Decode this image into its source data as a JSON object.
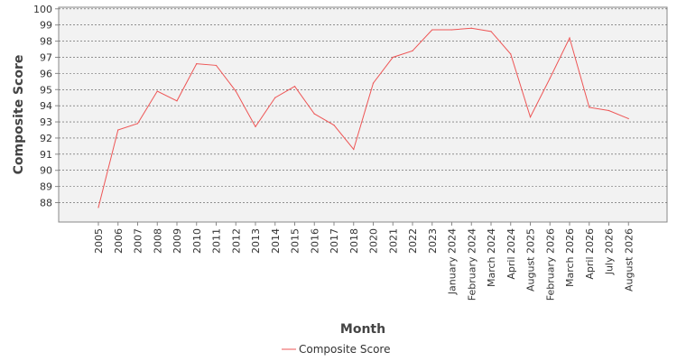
{
  "chart_data": {
    "type": "line",
    "title": "",
    "xlabel": "Month",
    "ylabel": "Composite Score",
    "ylim": [
      86.8,
      100.1
    ],
    "yticks": [
      88,
      89,
      90,
      91,
      92,
      93,
      94,
      95,
      96,
      97,
      98,
      99,
      100
    ],
    "grid": true,
    "legend_position": "bottom",
    "categories": [
      "2005",
      "2006",
      "2007",
      "2008",
      "2009",
      "2010",
      "2011",
      "2012",
      "2013",
      "2014",
      "2015",
      "2016",
      "2017",
      "2018",
      "2020",
      "2021",
      "2022",
      "2023",
      "January 2024",
      "February 2024",
      "March 2024",
      "April 2024",
      "August 2025",
      "February 2026",
      "March 2026",
      "April 2026",
      "July 2026",
      "August 2026"
    ],
    "series": [
      {
        "name": "Composite Score",
        "color": "#ee5555",
        "values": [
          87.7,
          92.5,
          92.9,
          94.9,
          94.3,
          96.6,
          96.5,
          94.9,
          92.7,
          94.5,
          95.2,
          93.5,
          92.8,
          91.3,
          95.4,
          97.0,
          97.4,
          98.7,
          98.7,
          98.8,
          98.6,
          97.2,
          93.3,
          95.7,
          98.2,
          93.9,
          93.7,
          93.2
        ]
      }
    ]
  }
}
